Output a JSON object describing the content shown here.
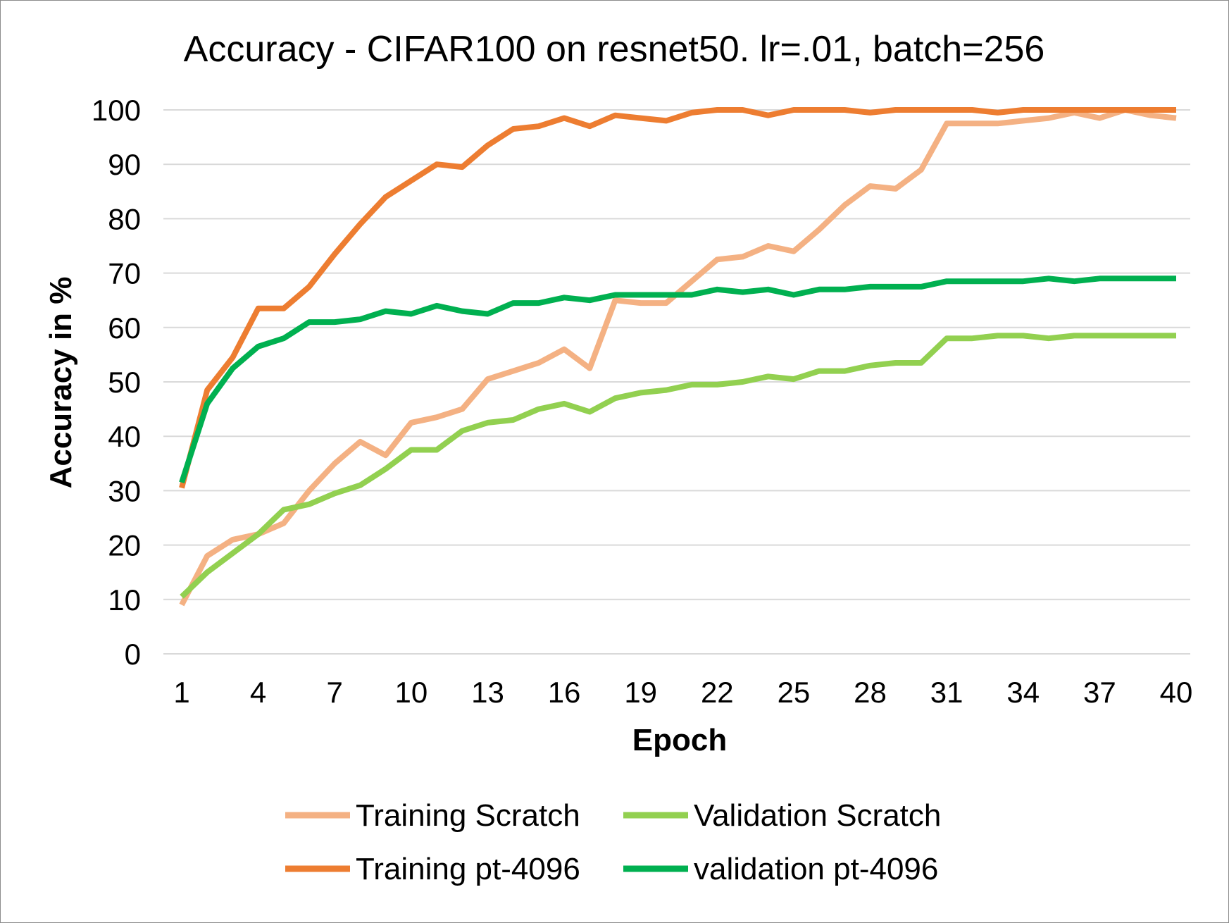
{
  "chart_data": {
    "type": "line",
    "title": "Accuracy - CIFAR100 on resnet50. lr=.01, batch=256",
    "xlabel": "Epoch",
    "ylabel": "Accuracy in %",
    "ylim": [
      0,
      100
    ],
    "yticks": [
      "0",
      "10",
      "20",
      "30",
      "40",
      "50",
      "60",
      "70",
      "80",
      "90",
      "100"
    ],
    "xticks": [
      "1",
      "4",
      "7",
      "10",
      "13",
      "16",
      "19",
      "22",
      "25",
      "28",
      "31",
      "34",
      "37",
      "40"
    ],
    "x": [
      1,
      2,
      3,
      4,
      5,
      6,
      7,
      8,
      9,
      10,
      11,
      12,
      13,
      14,
      15,
      16,
      17,
      18,
      19,
      20,
      21,
      22,
      23,
      24,
      25,
      26,
      27,
      28,
      29,
      30,
      31,
      32,
      33,
      34,
      35,
      36,
      37,
      38,
      39,
      40
    ],
    "grid": true,
    "legend_position": "bottom",
    "series": [
      {
        "name": "Training Scratch",
        "color": "#f4b183",
        "values": [
          9,
          18,
          21,
          22,
          24,
          30,
          35,
          39,
          36.5,
          42.5,
          43.5,
          45,
          50.5,
          52,
          53.5,
          56,
          52.5,
          65,
          64.5,
          64.5,
          68.5,
          72.5,
          73,
          75,
          74,
          78,
          82.5,
          86,
          85.5,
          89,
          97.5,
          97.5,
          97.5,
          98,
          98.5,
          99.5,
          98.5,
          100,
          99,
          98.5
        ]
      },
      {
        "name": "Validation Scratch",
        "color": "#92d050",
        "values": [
          10.5,
          15,
          18.5,
          22,
          26.5,
          27.5,
          29.5,
          31,
          34,
          37.5,
          37.5,
          41,
          42.5,
          43,
          45,
          46,
          44.5,
          47,
          48,
          48.5,
          49.5,
          49.5,
          50,
          51,
          50.5,
          52,
          52,
          53,
          53.5,
          53.5,
          58,
          58,
          58.5,
          58.5,
          58,
          58.5,
          58.5,
          58.5,
          58.5,
          58.5
        ]
      },
      {
        "name": "Training pt-4096",
        "color": "#ed7d31",
        "values": [
          30.5,
          48.5,
          54.5,
          63.5,
          63.5,
          67.5,
          73.5,
          79,
          84,
          87,
          90,
          89.5,
          93.5,
          96.5,
          97,
          98.5,
          97,
          99,
          98.5,
          98,
          99.5,
          100,
          100,
          99,
          100,
          100,
          100,
          99.5,
          100,
          100,
          100,
          100,
          99.5,
          100,
          100,
          100,
          100,
          100,
          100,
          100
        ]
      },
      {
        "name": "validation pt-4096",
        "color": "#00b050",
        "values": [
          31.5,
          46,
          52.5,
          56.5,
          58,
          61,
          61,
          61.5,
          63,
          62.5,
          64,
          63,
          62.5,
          64.5,
          64.5,
          65.5,
          65,
          66,
          66,
          66,
          66,
          67,
          66.5,
          67,
          66,
          67,
          67,
          67.5,
          67.5,
          67.5,
          68.5,
          68.5,
          68.5,
          68.5,
          69,
          68.5,
          69,
          69,
          69,
          69
        ]
      }
    ]
  }
}
